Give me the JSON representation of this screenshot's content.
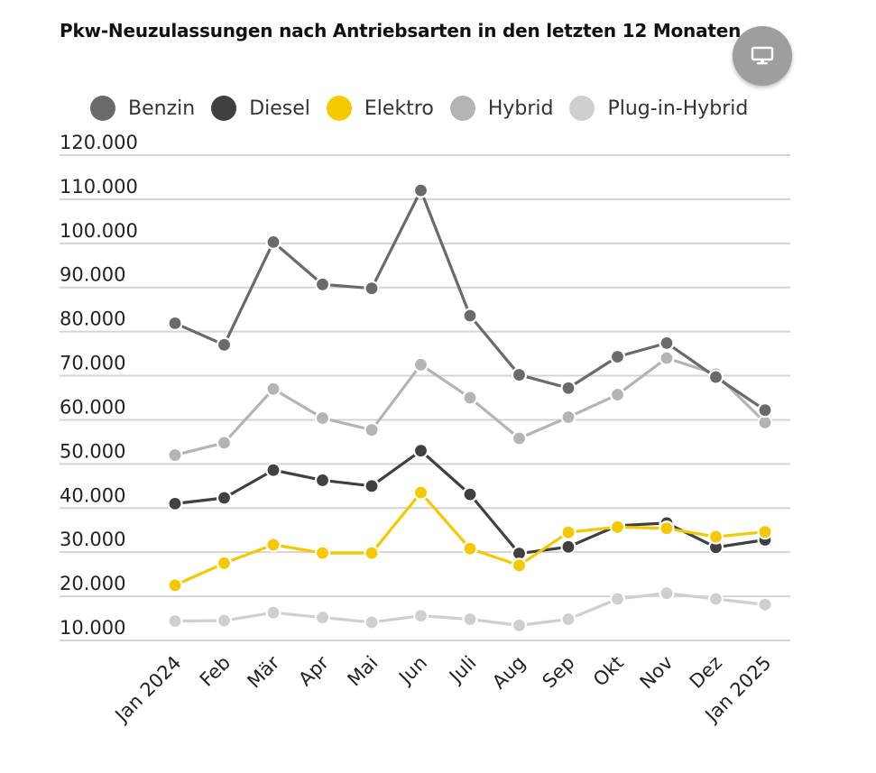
{
  "header": {
    "title": "Pkw-Neuzulassungen nach Antriebsarten in den letzten 12 Monaten",
    "screen_icon": "monitor-icon"
  },
  "chart_data": {
    "type": "line",
    "title": "Pkw-Neuzulassungen nach Antriebsarten in den letzten 12 Monaten",
    "xlabel": "",
    "ylabel": "",
    "legend_position": "top",
    "grid": true,
    "ylim": [
      10000,
      120000
    ],
    "y_ticks": [
      10000,
      20000,
      30000,
      40000,
      50000,
      60000,
      70000,
      80000,
      90000,
      100000,
      110000,
      120000
    ],
    "y_tick_labels": [
      "10.000",
      "20.000",
      "30.000",
      "40.000",
      "50.000",
      "60.000",
      "70.000",
      "80.000",
      "90.000",
      "100.000",
      "110.000",
      "120.000"
    ],
    "categories": [
      "Jan 2024",
      "Feb",
      "Mär",
      "Apr",
      "Mai",
      "Jun",
      "Juli",
      "Aug",
      "Sep",
      "Okt",
      "Nov",
      "Dez",
      "Jan 2025"
    ],
    "series": [
      {
        "name": "Plug-in-Hybrid",
        "color": "#cfcfcf",
        "values": [
          14400,
          14500,
          16300,
          15200,
          14100,
          15600,
          14800,
          13400,
          14800,
          19400,
          20700,
          19400,
          18100
        ]
      },
      {
        "name": "Hybrid",
        "color": "#b4b4b4",
        "values": [
          52000,
          54800,
          67000,
          60400,
          57700,
          72500,
          65000,
          55800,
          60600,
          65700,
          74000,
          70400,
          59400
        ]
      },
      {
        "name": "Diesel",
        "color": "#404040",
        "values": [
          41000,
          42300,
          48600,
          46300,
          45000,
          53000,
          43100,
          29700,
          31200,
          36000,
          36600,
          31100,
          32800
        ]
      },
      {
        "name": "Elektro",
        "color": "#f5c800",
        "values": [
          22500,
          27500,
          31700,
          29800,
          29800,
          43500,
          30800,
          27000,
          34500,
          35700,
          35400,
          33500,
          34600
        ]
      },
      {
        "name": "Benzin",
        "color": "#6a6a6a",
        "values": [
          81900,
          77000,
          100300,
          90700,
          89800,
          112000,
          83600,
          70200,
          67200,
          74300,
          77400,
          69700,
          62200
        ]
      }
    ]
  },
  "legend": {
    "items": [
      {
        "label": "Benzin",
        "color": "#6a6a6a"
      },
      {
        "label": "Diesel",
        "color": "#404040"
      },
      {
        "label": "Elektro",
        "color": "#f5c800"
      },
      {
        "label": "Hybrid",
        "color": "#b4b4b4"
      },
      {
        "label": "Plug-in-Hybrid",
        "color": "#cfcfcf"
      }
    ]
  }
}
